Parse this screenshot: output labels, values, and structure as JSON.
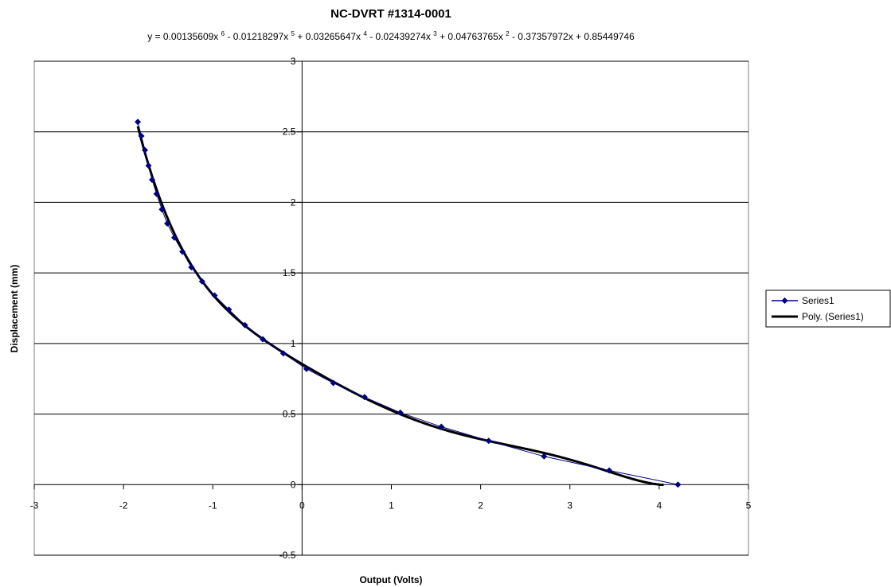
{
  "chart_data": {
    "type": "scatter",
    "title": "NC-DVRT #1314-0001",
    "equation": {
      "prefix": "y = 0.00135609x",
      "parts": [
        {
          "exp": "6",
          "text": " - 0.01218297x"
        },
        {
          "exp": "5",
          "text": " + 0.03265647x"
        },
        {
          "exp": "4",
          "text": " - 0.02439274x"
        },
        {
          "exp": "3",
          "text": " + 0.04763765x"
        },
        {
          "exp": "2",
          "text": " - 0.37357972x + 0.85449746"
        }
      ],
      "coefficients": [
        0.85449746,
        -0.37357972,
        0.04763765,
        -0.02439274,
        0.03265647,
        -0.01218297,
        0.00135609
      ]
    },
    "xlabel": "Output (Volts)",
    "ylabel": "Displacement (mm)",
    "xlim": [
      -3,
      5
    ],
    "ylim": [
      -0.5,
      3
    ],
    "x_ticks": [
      -3,
      -2,
      -1,
      0,
      1,
      2,
      3,
      4,
      5
    ],
    "y_ticks": [
      -0.5,
      0,
      0.5,
      1,
      1.5,
      2,
      2.5,
      3
    ],
    "grid": "horizontal",
    "legend_position": "right",
    "series": [
      {
        "name": "Series1",
        "color": "#000080",
        "x": [
          4.21,
          3.44,
          2.71,
          2.09,
          1.56,
          1.1,
          0.7,
          0.35,
          0.05,
          -0.21,
          -0.44,
          -0.64,
          -0.82,
          -0.98,
          -1.12,
          -1.24,
          -1.34,
          -1.43,
          -1.51,
          -1.57,
          -1.63,
          -1.68,
          -1.72,
          -1.76,
          -1.8,
          -1.84
        ],
        "y": [
          0.0,
          0.1,
          0.2,
          0.31,
          0.41,
          0.51,
          0.62,
          0.72,
          0.82,
          0.93,
          1.03,
          1.13,
          1.24,
          1.34,
          1.44,
          1.54,
          1.65,
          1.75,
          1.85,
          1.95,
          2.06,
          2.16,
          2.26,
          2.37,
          2.47,
          2.57
        ]
      }
    ],
    "trendline": {
      "name": "Poly. (Series1)",
      "color": "#000000",
      "x_range": [
        -1.84,
        4.05
      ]
    }
  }
}
